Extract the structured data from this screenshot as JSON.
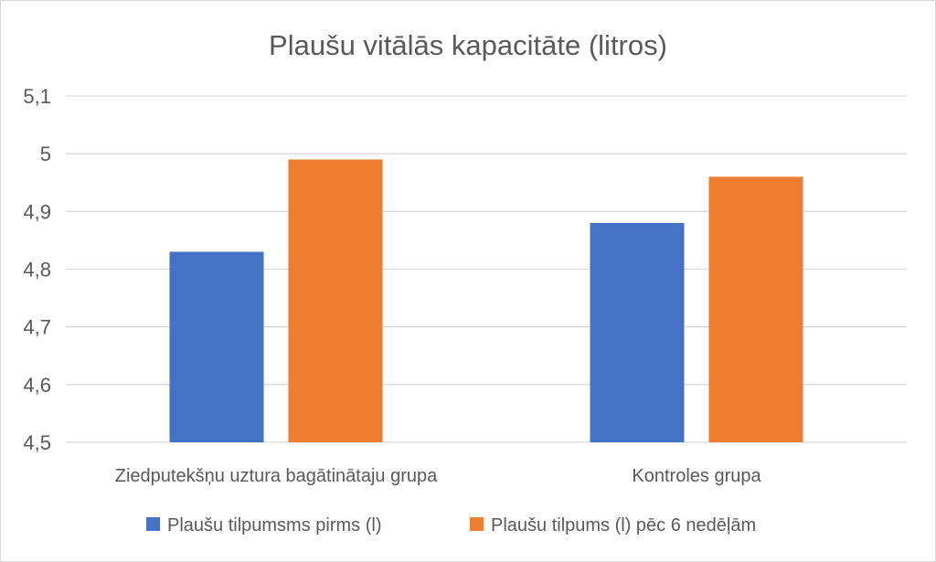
{
  "chart_data": {
    "type": "bar",
    "title": "Plaušu vitālās kapacitāte (litros)",
    "xlabel": "",
    "ylabel": "",
    "categories": [
      "Ziedputekšņu uztura bagātinātaju grupa",
      "Kontroles grupa"
    ],
    "series": [
      {
        "name": "Plaušu tilpumsms pirms (l)",
        "values": [
          4.83,
          4.88
        ],
        "color": "#4472c4"
      },
      {
        "name": "Plaušu tilpums (l) pēc 6 nedēļām",
        "values": [
          4.99,
          4.96
        ],
        "color": "#ed7d31"
      }
    ],
    "ylim": [
      4.5,
      5.1
    ],
    "yticks": [
      4.5,
      4.6,
      4.7,
      4.8,
      4.9,
      5,
      5.1
    ],
    "ytick_labels": [
      "4,5",
      "4,6",
      "4,7",
      "4,8",
      "4,9",
      "5",
      "5,1"
    ],
    "grid": true,
    "legend_position": "bottom",
    "gridline_color": "#d9d9d9"
  }
}
